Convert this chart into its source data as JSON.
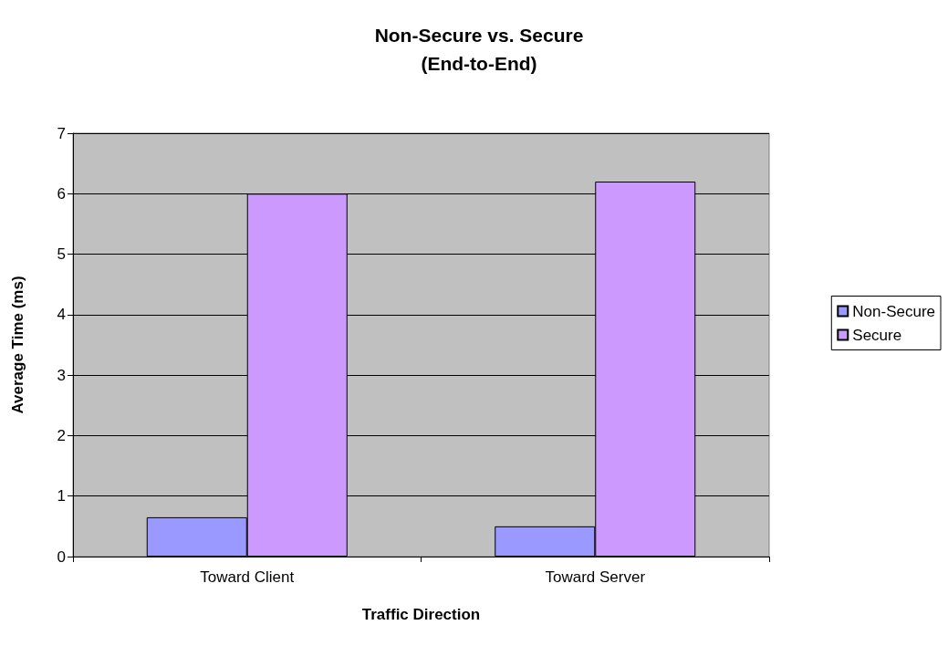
{
  "chart_data": {
    "type": "bar",
    "title": "Non-Secure vs. Secure\n(End-to-End)",
    "xlabel": "Traffic Direction",
    "ylabel": "Average Time (ms)",
    "categories": [
      "Toward Client",
      "Toward Server"
    ],
    "series": [
      {
        "name": "Non-Secure",
        "color": "#9999ff",
        "values": [
          0.65,
          0.5
        ]
      },
      {
        "name": "Secure",
        "color": "#cc99ff",
        "values": [
          6.0,
          6.2
        ]
      }
    ],
    "ylim": [
      0,
      7
    ],
    "yticks": [
      0,
      1,
      2,
      3,
      4,
      5,
      6,
      7
    ],
    "grid": "y",
    "legend": "right"
  }
}
